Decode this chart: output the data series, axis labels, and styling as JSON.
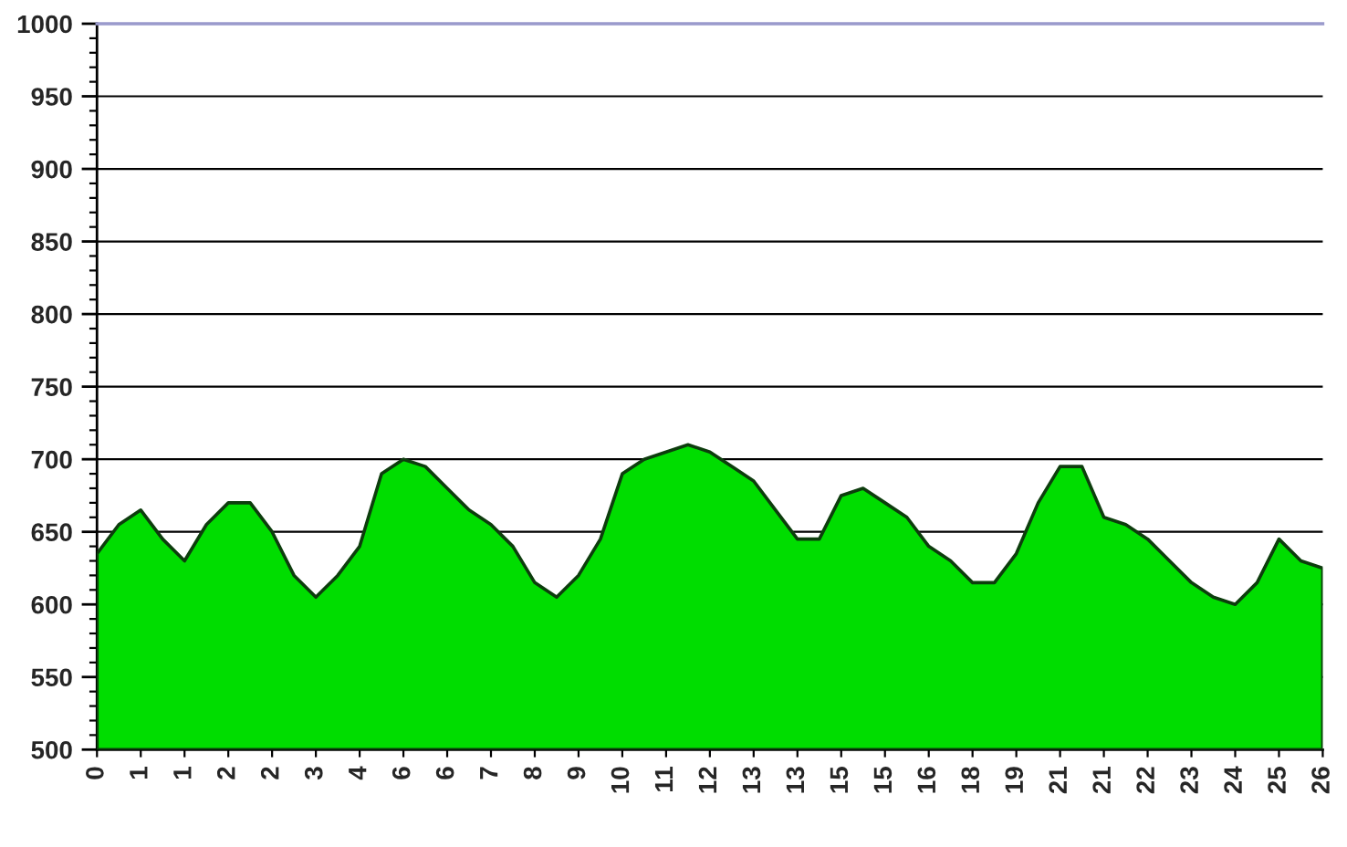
{
  "chart_data": {
    "type": "area",
    "categories": [
      "0",
      null,
      "1",
      null,
      "1",
      null,
      "2",
      null,
      "2",
      null,
      "3",
      null,
      "4",
      null,
      "6",
      null,
      "6",
      null,
      "7",
      null,
      "8",
      null,
      "9",
      null,
      "10",
      null,
      "11",
      null,
      "12",
      null,
      "13",
      null,
      "13",
      null,
      "15",
      null,
      "15",
      null,
      "16",
      null,
      "18",
      null,
      "19",
      null,
      "21",
      null,
      "21",
      null,
      "22",
      null,
      "23",
      null,
      "24",
      null,
      "25",
      null,
      "26"
    ],
    "values": [
      635,
      655,
      665,
      645,
      630,
      655,
      670,
      670,
      650,
      620,
      605,
      620,
      640,
      690,
      700,
      695,
      680,
      665,
      655,
      640,
      615,
      605,
      620,
      645,
      690,
      700,
      705,
      710,
      705,
      695,
      685,
      665,
      645,
      645,
      675,
      680,
      670,
      660,
      640,
      630,
      615,
      615,
      635,
      670,
      695,
      695,
      660,
      655,
      645,
      630,
      615,
      605,
      600,
      615,
      645,
      630,
      625
    ],
    "color": "#00dd00",
    "ylim": [
      500,
      1000
    ],
    "yticks": [
      500,
      550,
      600,
      650,
      700,
      750,
      800,
      850,
      900,
      950,
      1000
    ],
    "grid": "y"
  }
}
